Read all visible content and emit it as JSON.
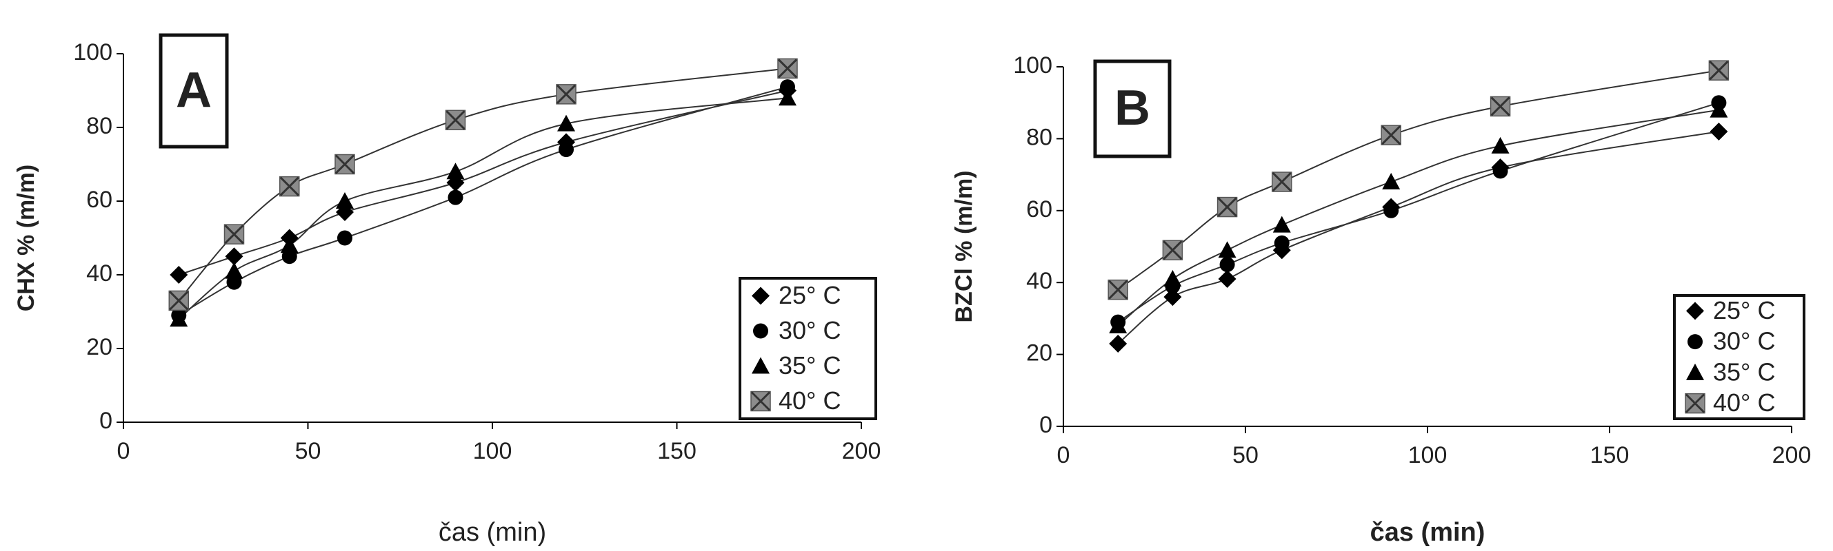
{
  "chart_data": [
    {
      "type": "scatter",
      "panel_label": "A",
      "xlabel": "čas (min)",
      "ylabel": "CHX % (m/m)",
      "x": [
        15,
        30,
        45,
        60,
        90,
        120,
        180
      ],
      "xlim": [
        0,
        200
      ],
      "xticks": [
        0,
        50,
        100,
        150,
        200
      ],
      "ylim": [
        0,
        100
      ],
      "yticks": [
        0,
        20,
        40,
        60,
        80,
        100
      ],
      "series": [
        {
          "name": "25° C",
          "marker": "diamond",
          "color": "#000000",
          "values": [
            40,
            45,
            50,
            57,
            65,
            76,
            90
          ]
        },
        {
          "name": "30° C",
          "marker": "circle",
          "color": "#000000",
          "values": [
            29,
            38,
            45,
            50,
            61,
            74,
            91
          ]
        },
        {
          "name": "35° C",
          "marker": "triangle",
          "color": "#000000",
          "values": [
            28,
            41,
            48,
            60,
            68,
            81,
            88
          ]
        },
        {
          "name": "40° C",
          "marker": "square-x",
          "color": "#8c8c8c",
          "values": [
            33,
            51,
            64,
            70,
            82,
            89,
            96
          ]
        }
      ]
    },
    {
      "type": "scatter",
      "panel_label": "B",
      "xlabel": "čas (min)",
      "ylabel": "BZCl % (m/m)",
      "x": [
        15,
        30,
        45,
        60,
        90,
        120,
        180
      ],
      "xlim": [
        0,
        200
      ],
      "xticks": [
        0,
        50,
        100,
        150,
        200
      ],
      "ylim": [
        0,
        100
      ],
      "yticks": [
        0,
        20,
        40,
        60,
        80,
        100
      ],
      "series": [
        {
          "name": "25° C",
          "marker": "diamond",
          "color": "#000000",
          "values": [
            23,
            36,
            41,
            49,
            61,
            72,
            82
          ]
        },
        {
          "name": "30° C",
          "marker": "circle",
          "color": "#000000",
          "values": [
            29,
            39,
            45,
            51,
            60,
            71,
            90
          ]
        },
        {
          "name": "35° C",
          "marker": "triangle",
          "color": "#000000",
          "values": [
            28,
            41,
            49,
            56,
            68,
            78,
            88
          ]
        },
        {
          "name": "40° C",
          "marker": "square-x",
          "color": "#8c8c8c",
          "values": [
            38,
            49,
            61,
            68,
            81,
            89,
            99
          ]
        }
      ]
    }
  ]
}
